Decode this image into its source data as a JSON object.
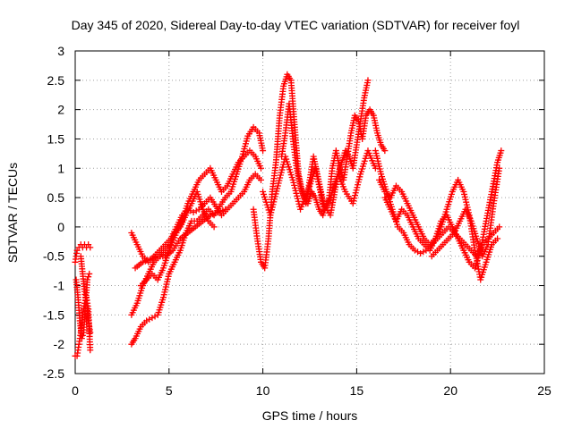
{
  "chart_data": {
    "type": "scatter",
    "title": "Day 345 of 2020, Sidereal Day-to-day VTEC variation (SDTVAR) for receiver foyl",
    "xlabel": "GPS time / hours",
    "ylabel": "SDTVAR / TECUs",
    "xlim": [
      0,
      25
    ],
    "ylim": [
      -2.5,
      3
    ],
    "xticks": [
      "0",
      "5",
      "10",
      "15",
      "20",
      "25"
    ],
    "yticks": [
      "-2.5",
      "-2",
      "-1.5",
      "-1",
      "-0.5",
      "0",
      "0.5",
      "1",
      "1.5",
      "2",
      "2.5",
      "3"
    ],
    "grid": true,
    "marker": "+",
    "color": "#ff0000",
    "series": [
      {
        "name": "trace-1",
        "x": [
          0.0,
          0.1,
          0.2,
          0.3,
          0.4,
          0.5,
          0.6,
          0.7,
          0.8
        ],
        "y": [
          -0.6,
          -0.4,
          -0.35,
          -0.3,
          -0.35,
          -0.3,
          -0.35,
          -0.3,
          -0.35
        ]
      },
      {
        "name": "trace-2",
        "x": [
          0.0,
          0.1,
          0.2,
          0.3,
          0.4,
          0.5,
          0.6,
          0.7,
          0.8
        ],
        "y": [
          -2.2,
          -2.2,
          -2.0,
          -1.8,
          -1.5,
          -1.3,
          -1.2,
          -1.4,
          -2.1
        ]
      },
      {
        "name": "trace-3",
        "x": [
          0.05,
          0.15,
          0.25,
          0.35,
          0.45,
          0.55,
          0.65,
          0.75
        ],
        "y": [
          -0.9,
          -1.2,
          -1.6,
          -1.9,
          -1.8,
          -1.3,
          -0.9,
          -0.8
        ]
      },
      {
        "name": "trace-4",
        "x": [
          0.3,
          0.4,
          0.5,
          0.6,
          0.7,
          0.8
        ],
        "y": [
          -0.5,
          -0.8,
          -1.1,
          -1.3,
          -1.6,
          -1.8
        ]
      },
      {
        "name": "trace-5",
        "x": [
          3.0,
          3.2,
          3.5,
          3.8,
          4.1,
          4.4,
          4.7,
          5.0,
          5.3,
          5.6,
          5.9,
          6.2,
          6.5,
          6.8,
          7.1,
          7.4,
          7.7,
          8.0,
          8.3,
          8.6,
          8.9,
          9.2,
          9.5,
          9.8,
          10.0
        ],
        "y": [
          -2.0,
          -1.9,
          -1.7,
          -1.6,
          -1.55,
          -1.5,
          -1.2,
          -0.8,
          -0.6,
          -0.4,
          -0.1,
          0.1,
          0.1,
          0.2,
          0.3,
          0.2,
          0.35,
          0.5,
          0.6,
          0.9,
          1.2,
          1.55,
          1.7,
          1.6,
          1.3
        ]
      },
      {
        "name": "trace-6",
        "x": [
          3.0,
          3.3,
          3.6,
          3.9,
          4.2,
          4.5,
          4.8,
          5.1,
          5.4,
          5.7,
          6.0,
          6.3,
          6.6,
          6.9,
          7.2,
          7.5,
          7.8,
          8.1,
          8.4,
          8.7,
          9.0,
          9.3,
          9.6,
          9.9
        ],
        "y": [
          -0.1,
          -0.3,
          -0.5,
          -0.6,
          -0.5,
          -0.4,
          -0.3,
          -0.2,
          0.0,
          0.2,
          0.3,
          0.25,
          0.3,
          0.4,
          0.5,
          0.35,
          0.2,
          0.3,
          0.4,
          0.5,
          0.6,
          0.8,
          0.9,
          0.8
        ]
      },
      {
        "name": "trace-7",
        "x": [
          3.0,
          3.3,
          3.6,
          3.9,
          4.2,
          4.5,
          4.8,
          5.1,
          5.4,
          5.7,
          6.0,
          6.3,
          6.6,
          6.9,
          7.2,
          7.5,
          7.8,
          8.1,
          8.4,
          8.7,
          9.0,
          9.3,
          9.6,
          9.9
        ],
        "y": [
          -1.5,
          -1.3,
          -1.0,
          -0.8,
          -0.6,
          -0.5,
          -0.4,
          -0.3,
          -0.1,
          0.1,
          0.4,
          0.6,
          0.8,
          0.9,
          1.0,
          0.8,
          0.6,
          0.7,
          0.9,
          1.1,
          1.2,
          1.3,
          1.2,
          1.0
        ]
      },
      {
        "name": "trace-8",
        "x": [
          3.2,
          3.6,
          4.0,
          4.4,
          4.8,
          5.2,
          5.6,
          6.0,
          6.4,
          6.8,
          7.2,
          7.6,
          8.0
        ],
        "y": [
          -0.7,
          -0.6,
          -0.55,
          -0.5,
          -0.5,
          -0.4,
          -0.2,
          -0.1,
          0.0,
          0.1,
          0.2,
          0.25,
          0.3
        ]
      },
      {
        "name": "trace-9",
        "x": [
          3.5,
          3.8,
          4.1,
          4.4,
          4.7,
          5.0,
          5.3,
          5.6,
          5.9,
          6.2,
          6.5,
          6.8,
          7.1,
          7.4
        ],
        "y": [
          -1.0,
          -0.9,
          -0.8,
          -0.9,
          -0.7,
          -0.4,
          -0.1,
          0.0,
          0.2,
          0.4,
          0.6,
          0.3,
          0.1,
          0.0
        ]
      },
      {
        "name": "trace-10",
        "x": [
          9.5,
          9.7,
          9.9,
          10.1,
          10.3,
          10.5,
          10.7,
          10.9,
          11.1,
          11.3,
          11.5,
          11.7,
          11.9,
          12.1,
          12.3,
          12.5,
          12.7,
          12.9,
          13.1,
          13.3,
          13.5,
          13.7,
          13.9,
          14.1,
          14.3,
          14.5,
          14.7,
          14.9,
          15.1,
          15.3,
          15.5,
          15.7,
          15.9,
          16.1,
          16.3,
          16.5
        ],
        "y": [
          0.3,
          -0.2,
          -0.6,
          -0.7,
          -0.2,
          0.6,
          1.1,
          1.9,
          2.4,
          2.6,
          2.5,
          1.7,
          0.9,
          0.6,
          0.4,
          0.8,
          1.2,
          0.9,
          0.6,
          0.3,
          0.4,
          1.0,
          1.3,
          1.0,
          0.8,
          1.2,
          1.6,
          1.9,
          1.8,
          1.5,
          1.9,
          2.0,
          1.9,
          1.6,
          1.4,
          1.3
        ]
      },
      {
        "name": "trace-11",
        "x": [
          10.0,
          10.4,
          10.8,
          11.2,
          11.6,
          12.0,
          12.4,
          12.8,
          13.2,
          13.6,
          14.0,
          14.4,
          14.8,
          15.2,
          15.6,
          16.0
        ],
        "y": [
          0.6,
          0.2,
          0.7,
          1.2,
          0.8,
          0.3,
          0.6,
          1.0,
          0.4,
          0.2,
          0.9,
          0.6,
          0.4,
          0.9,
          1.3,
          1.0
        ]
      },
      {
        "name": "trace-12",
        "x": [
          11.0,
          11.2,
          11.4,
          11.6,
          11.8,
          12.0,
          12.2,
          12.4,
          12.6,
          12.8,
          13.0,
          13.2,
          13.4,
          13.6,
          13.8,
          14.0,
          14.2,
          14.4,
          14.6,
          14.8,
          15.0,
          15.2,
          15.4,
          15.6
        ],
        "y": [
          1.2,
          1.6,
          2.1,
          1.5,
          1.0,
          0.7,
          0.5,
          0.4,
          0.6,
          0.5,
          0.3,
          0.2,
          0.4,
          0.5,
          0.7,
          0.9,
          1.1,
          1.3,
          1.2,
          1.0,
          1.4,
          1.8,
          2.2,
          2.5
        ]
      },
      {
        "name": "trace-13",
        "x": [
          16.0,
          16.3,
          16.6,
          16.9,
          17.2,
          17.5,
          17.8,
          18.1,
          18.4,
          18.7,
          19.0,
          19.3,
          19.6,
          19.9,
          20.2,
          20.5,
          20.8,
          21.1,
          21.4,
          21.7,
          22.0,
          22.3,
          22.6
        ],
        "y": [
          1.3,
          0.9,
          0.6,
          0.3,
          0.0,
          -0.1,
          -0.3,
          -0.4,
          -0.45,
          -0.4,
          -0.3,
          -0.2,
          -0.1,
          0.0,
          -0.1,
          -0.2,
          -0.3,
          -0.4,
          -0.5,
          -0.3,
          -0.2,
          -0.1,
          0.0
        ]
      },
      {
        "name": "trace-14",
        "x": [
          16.2,
          16.5,
          16.8,
          17.1,
          17.4,
          17.7,
          18.0,
          18.3,
          18.6,
          18.9,
          19.2,
          19.5,
          19.8,
          20.1,
          20.4,
          20.7,
          21.0,
          21.3,
          21.6,
          21.9,
          22.2,
          22.5
        ],
        "y": [
          0.8,
          0.6,
          0.5,
          0.7,
          0.6,
          0.4,
          0.2,
          0.0,
          -0.2,
          -0.3,
          -0.2,
          0.0,
          0.3,
          0.6,
          0.8,
          0.6,
          0.2,
          -0.4,
          -0.9,
          -0.6,
          -0.3,
          -0.2
        ]
      },
      {
        "name": "trace-15",
        "x": [
          16.5,
          16.8,
          17.1,
          17.4,
          17.7,
          18.0,
          18.3,
          18.6,
          18.9,
          19.2,
          19.5,
          19.8,
          20.1,
          20.4,
          20.7,
          21.0,
          21.3,
          21.6,
          21.9,
          22.2,
          22.5,
          22.7
        ],
        "y": [
          0.5,
          0.3,
          0.1,
          0.3,
          0.2,
          0.0,
          -0.2,
          -0.3,
          -0.4,
          -0.2,
          0.1,
          0.2,
          0.0,
          -0.2,
          -0.4,
          -0.6,
          -0.7,
          -0.4,
          0.1,
          0.6,
          1.1,
          1.3
        ]
      },
      {
        "name": "trace-16",
        "x": [
          19.0,
          19.3,
          19.6,
          19.9,
          20.2,
          20.5,
          20.8,
          21.1,
          21.4,
          21.7,
          22.0,
          22.3,
          22.6
        ],
        "y": [
          -0.5,
          -0.4,
          -0.3,
          -0.2,
          -0.1,
          0.1,
          0.3,
          0.1,
          -0.2,
          -0.5,
          -0.3,
          0.4,
          1.0
        ]
      }
    ]
  }
}
